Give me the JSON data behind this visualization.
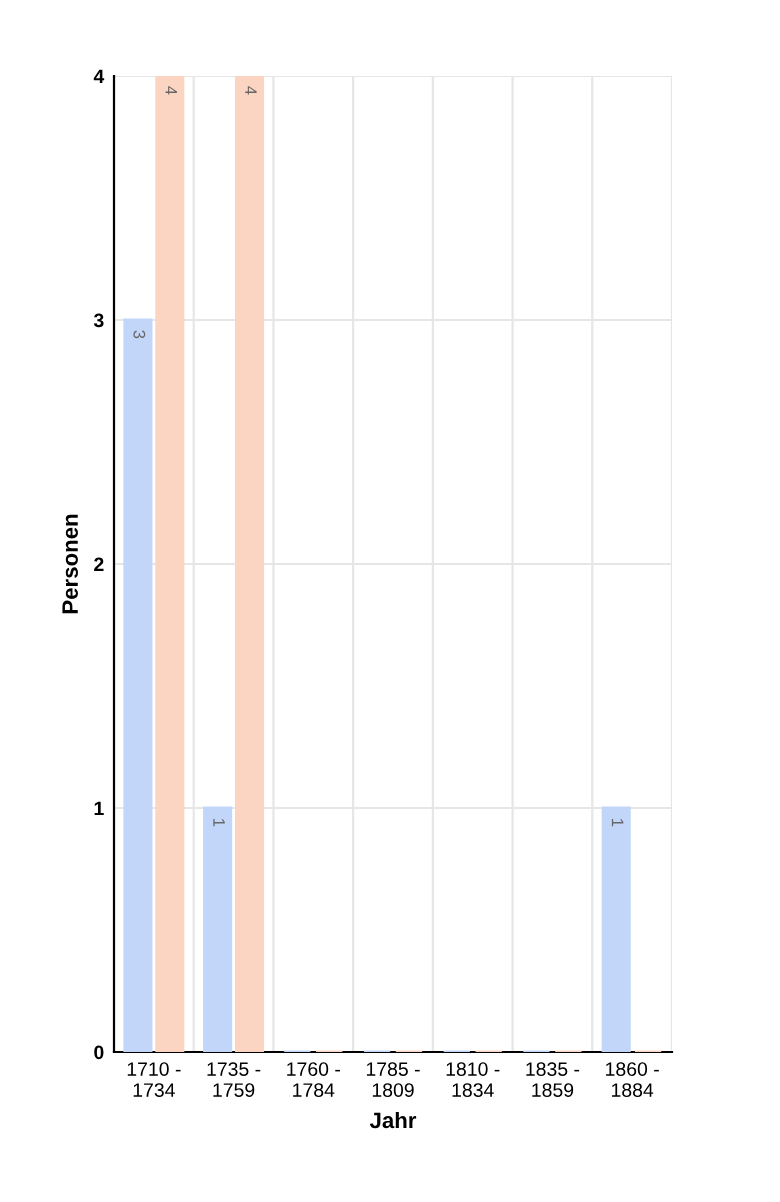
{
  "chart_data": {
    "type": "bar",
    "xlabel": "Jahr",
    "ylabel": "Personen",
    "categories": [
      "1710 -\n1734",
      "1735 -\n1759",
      "1760 -\n1784",
      "1785 -\n1809",
      "1810 -\n1834",
      "1835 -\n1859",
      "1860 -\n1884"
    ],
    "series": [
      {
        "color": "#c2d6f9",
        "values": [
          3,
          1,
          0,
          0,
          0,
          0,
          1
        ],
        "value_labels": [
          "3",
          "1",
          null,
          null,
          null,
          null,
          "1"
        ]
      },
      {
        "color": "#fcd5c2",
        "values": [
          4,
          4,
          0,
          0,
          0,
          0,
          0
        ],
        "value_labels": [
          "4",
          "4",
          null,
          null,
          null,
          null,
          null
        ]
      }
    ],
    "ylim": [
      0,
      4
    ],
    "yticks": [
      0,
      1,
      2,
      3,
      4
    ],
    "grid": true,
    "legend": false
  }
}
